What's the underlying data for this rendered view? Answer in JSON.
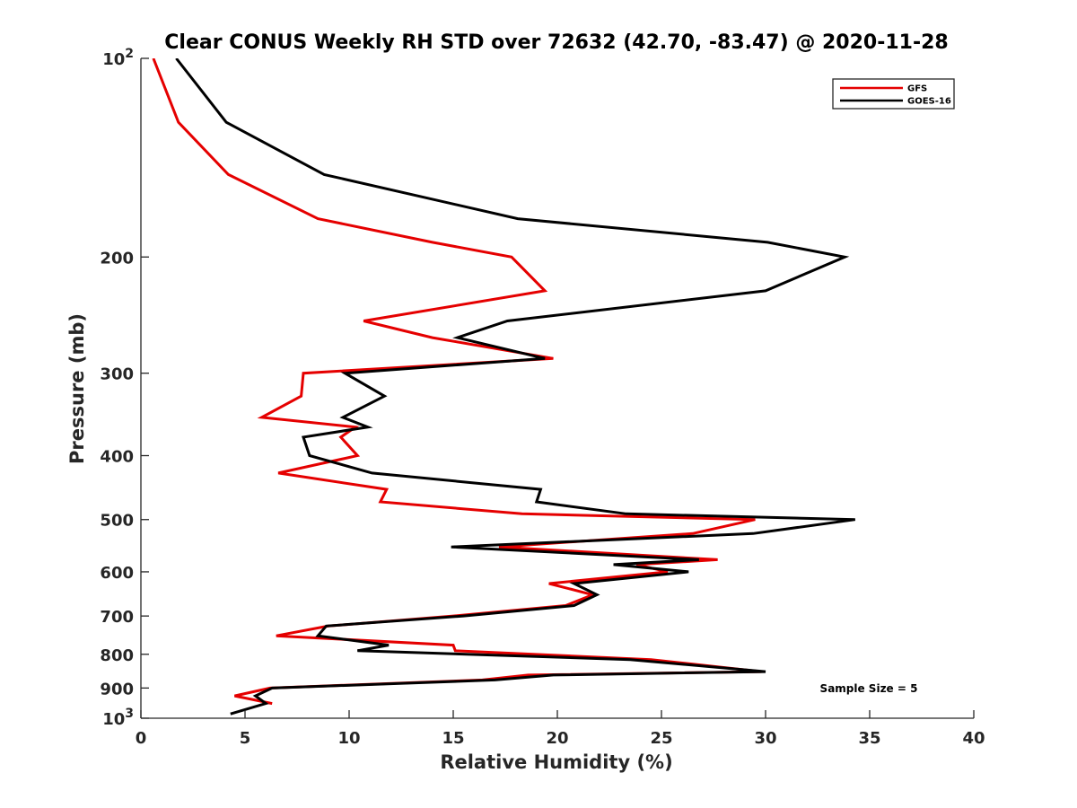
{
  "chart_data": {
    "type": "line",
    "title": "Clear CONUS Weekly RH STD over 72632 (42.70, -83.47) @ 2020-11-28",
    "xlabel": "Relative Humidity (%)",
    "ylabel": "Pressure (mb)",
    "xlim": [
      0,
      40
    ],
    "ylim": [
      100,
      1000
    ],
    "y_scale": "log",
    "y_reversed": true,
    "xticks": [
      0,
      5,
      10,
      15,
      20,
      25,
      30,
      35,
      40
    ],
    "xtick_labels": [
      "0",
      "5",
      "10",
      "15",
      "20",
      "25",
      "30",
      "35",
      "40"
    ],
    "yticks": [
      100,
      200,
      300,
      400,
      500,
      600,
      700,
      800,
      900,
      1000
    ],
    "ytick_labels": [
      "10²",
      "200",
      "300",
      "400",
      "500",
      "600",
      "700",
      "800",
      "900",
      "10³"
    ],
    "grid": false,
    "legend_position": "top-right",
    "annotation": "Sample Size = 5",
    "series": [
      {
        "name": "GFS",
        "color": "#e50000",
        "points": [
          [
            0.6,
            100
          ],
          [
            1.8,
            125
          ],
          [
            4.2,
            150
          ],
          [
            8.5,
            175
          ],
          [
            14,
            190
          ],
          [
            17.8,
            200
          ],
          [
            19.4,
            225
          ],
          [
            10.7,
            250
          ],
          [
            14,
            265
          ],
          [
            19.8,
            285
          ],
          [
            7.8,
            300
          ],
          [
            7.7,
            325
          ],
          [
            5.8,
            350
          ],
          [
            10.3,
            362
          ],
          [
            9.6,
            375
          ],
          [
            10.4,
            400
          ],
          [
            6.6,
            425
          ],
          [
            11.8,
            450
          ],
          [
            11.5,
            470
          ],
          [
            18.3,
            490
          ],
          [
            29.5,
            500
          ],
          [
            26.5,
            525
          ],
          [
            17.2,
            550
          ],
          [
            27.7,
            575
          ],
          [
            23.8,
            585
          ],
          [
            25.3,
            600
          ],
          [
            19.6,
            625
          ],
          [
            21.7,
            650
          ],
          [
            20.4,
            675
          ],
          [
            15,
            700
          ],
          [
            9,
            725
          ],
          [
            6.5,
            750
          ],
          [
            15,
            775
          ],
          [
            15.1,
            790
          ],
          [
            24.5,
            815
          ],
          [
            29.8,
            850
          ],
          [
            18.6,
            860
          ],
          [
            16.4,
            875
          ],
          [
            6.2,
            900
          ],
          [
            4.5,
            925
          ],
          [
            6.3,
            950
          ]
        ]
      },
      {
        "name": "GOES-16",
        "color": "#000000",
        "points": [
          [
            1.7,
            100
          ],
          [
            4.1,
            125
          ],
          [
            8.8,
            150
          ],
          [
            18.1,
            175
          ],
          [
            30.1,
            190
          ],
          [
            33.8,
            200
          ],
          [
            30,
            225
          ],
          [
            17.6,
            250
          ],
          [
            15.2,
            265
          ],
          [
            19.4,
            285
          ],
          [
            9.8,
            300
          ],
          [
            11.7,
            325
          ],
          [
            9.7,
            350
          ],
          [
            10.9,
            362
          ],
          [
            7.8,
            375
          ],
          [
            8.1,
            400
          ],
          [
            11.1,
            425
          ],
          [
            19.2,
            450
          ],
          [
            19,
            470
          ],
          [
            23.3,
            490
          ],
          [
            34.3,
            500
          ],
          [
            29.4,
            525
          ],
          [
            14.9,
            550
          ],
          [
            26.8,
            575
          ],
          [
            22.7,
            585
          ],
          [
            26.3,
            600
          ],
          [
            20.8,
            625
          ],
          [
            21.9,
            650
          ],
          [
            20.8,
            675
          ],
          [
            15.5,
            700
          ],
          [
            8.9,
            725
          ],
          [
            8.5,
            750
          ],
          [
            11.9,
            775
          ],
          [
            10.4,
            790
          ],
          [
            23.5,
            815
          ],
          [
            30,
            850
          ],
          [
            19.8,
            860
          ],
          [
            17,
            875
          ],
          [
            6.3,
            900
          ],
          [
            5.5,
            925
          ],
          [
            6,
            950
          ],
          [
            4.3,
            985
          ]
        ]
      }
    ]
  }
}
